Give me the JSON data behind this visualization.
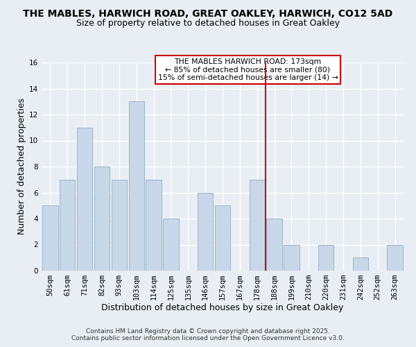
{
  "title": "THE MABLES, HARWICH ROAD, GREAT OAKLEY, HARWICH, CO12 5AD",
  "subtitle": "Size of property relative to detached houses in Great Oakley",
  "xlabel": "Distribution of detached houses by size in Great Oakley",
  "ylabel": "Number of detached properties",
  "bar_labels": [
    "50sqm",
    "61sqm",
    "71sqm",
    "82sqm",
    "93sqm",
    "103sqm",
    "114sqm",
    "125sqm",
    "135sqm",
    "146sqm",
    "157sqm",
    "167sqm",
    "178sqm",
    "188sqm",
    "199sqm",
    "210sqm",
    "220sqm",
    "231sqm",
    "242sqm",
    "252sqm",
    "263sqm"
  ],
  "bar_values": [
    5,
    7,
    11,
    8,
    7,
    13,
    7,
    4,
    0,
    6,
    5,
    0,
    7,
    4,
    2,
    0,
    2,
    0,
    1,
    0,
    2
  ],
  "bar_color": "#c8d8e8",
  "bar_edgecolor": "#9ab4cc",
  "ylim": [
    0,
    16
  ],
  "yticks": [
    0,
    2,
    4,
    6,
    8,
    10,
    12,
    14,
    16
  ],
  "property_line_x": 12.5,
  "property_line_color": "#cc0000",
  "annotation_text": "THE MABLES HARWICH ROAD: 173sqm\n← 85% of detached houses are smaller (80)\n15% of semi-detached houses are larger (14) →",
  "footer_line1": "Contains HM Land Registry data © Crown copyright and database right 2025.",
  "footer_line2": "Contains public sector information licensed under the Open Government Licence v3.0.",
  "background_color": "#e8eef4",
  "grid_color": "white",
  "title_fontsize": 10,
  "subtitle_fontsize": 9,
  "axis_label_fontsize": 9,
  "tick_fontsize": 7.5,
  "footer_fontsize": 6.5
}
